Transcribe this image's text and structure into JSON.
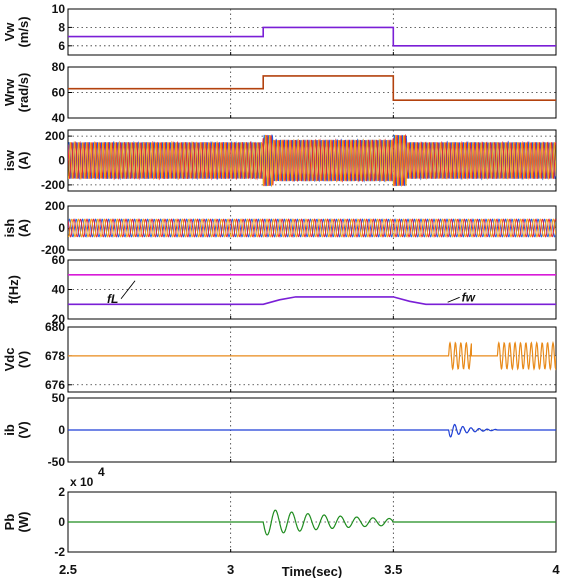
{
  "x_axis": {
    "label": "Time(sec)",
    "ticks": [
      "2.5",
      "3",
      "3.5",
      "4"
    ],
    "tick_values": [
      2.5,
      3,
      3.5,
      4
    ],
    "xlim": [
      2.5,
      4
    ]
  },
  "chart_data": [
    {
      "type": "line",
      "ylabel_lines": [
        "Vw",
        "(m/s)"
      ],
      "ylim": [
        5,
        10
      ],
      "yticks": [
        {
          "v": 10,
          "t": "10"
        },
        {
          "v": 8,
          "t": "8"
        },
        {
          "v": 6,
          "t": "6"
        }
      ],
      "grid": true,
      "series": [
        {
          "color": "#7a1fd6",
          "kind": "step",
          "x": [
            2.5,
            3.1,
            3.1,
            3.5,
            3.5,
            4.0
          ],
          "y": [
            7,
            7,
            8,
            8,
            6,
            6
          ]
        }
      ]
    },
    {
      "type": "line",
      "ylabel_lines": [
        "Wrw",
        "(rad/s)"
      ],
      "ylim": [
        40,
        80
      ],
      "yticks": [
        {
          "v": 80,
          "t": "80"
        },
        {
          "v": 60,
          "t": "60"
        },
        {
          "v": 40,
          "t": "40"
        }
      ],
      "grid": true,
      "series": [
        {
          "color": "#b3420e",
          "kind": "step",
          "x": [
            2.5,
            3.1,
            3.1,
            3.5,
            3.5,
            4.0
          ],
          "y": [
            63,
            63,
            73,
            73,
            54,
            54
          ]
        }
      ]
    },
    {
      "type": "line",
      "ylabel_lines": [
        "isw",
        "(A)"
      ],
      "ylim": [
        -250,
        250
      ],
      "yticks": [
        {
          "v": 200,
          "t": "200"
        },
        {
          "v": 0,
          "t": "0"
        },
        {
          "v": -200,
          "t": "-200"
        }
      ],
      "grid": true,
      "series": [
        {
          "color": "#1f5fe0",
          "kind": "osc3",
          "freq": 80,
          "segments": [
            [
              2.5,
              3.1,
              150
            ],
            [
              3.1,
              3.5,
              170
            ],
            [
              3.5,
              4.0,
              150
            ]
          ],
          "transients": [
            [
              3.1,
              3.13,
              210
            ],
            [
              3.5,
              3.54,
              210
            ]
          ]
        }
      ]
    },
    {
      "type": "line",
      "ylabel_lines": [
        "ish",
        "(A)"
      ],
      "ylim": [
        -200,
        200
      ],
      "yticks": [
        {
          "v": 200,
          "t": "200"
        },
        {
          "v": 0,
          "t": "0"
        },
        {
          "v": -200,
          "t": "-200"
        }
      ],
      "grid": true,
      "series": [
        {
          "color": "#1f5fe0",
          "kind": "osc3",
          "freq": 50,
          "segments": [
            [
              2.5,
              4.0,
              80
            ]
          ],
          "transients": []
        }
      ]
    },
    {
      "type": "line",
      "ylabel_lines": [
        "f(Hz)"
      ],
      "ylim": [
        20,
        60
      ],
      "yticks": [
        {
          "v": 60,
          "t": "60"
        },
        {
          "v": 40,
          "t": "40"
        },
        {
          "v": 20,
          "t": "20"
        }
      ],
      "grid": true,
      "series": [
        {
          "color": "#d81bd8",
          "kind": "step",
          "x": [
            2.5,
            4.0
          ],
          "y": [
            50,
            50
          ]
        },
        {
          "color": "#7a1fd6",
          "kind": "step",
          "x": [
            2.5,
            3.1,
            3.15,
            3.2,
            3.5,
            3.55,
            3.6,
            4.0
          ],
          "y": [
            30,
            30,
            33,
            35,
            35,
            32,
            30,
            30
          ]
        }
      ],
      "annotations": [
        {
          "text": "fL",
          "x": 2.62,
          "y": 31
        },
        {
          "text": "fw",
          "x": 3.71,
          "y": 32
        }
      ]
    },
    {
      "type": "line",
      "ylabel_lines": [
        "Vdc",
        "(V)"
      ],
      "ylim": [
        675.5,
        680
      ],
      "yticks": [
        {
          "v": 680,
          "t": "680"
        },
        {
          "v": 678,
          "t": "678"
        },
        {
          "v": 676,
          "t": "676"
        }
      ],
      "grid": true,
      "series": [
        {
          "color": "#e88a1a",
          "kind": "osc1",
          "base": 678,
          "freq": 60,
          "segments": [
            [
              3.67,
              3.74,
              0.9
            ],
            [
              3.82,
              4.0,
              0.9
            ]
          ]
        }
      ]
    },
    {
      "type": "line",
      "ylabel_lines": [
        "ib",
        "(V)"
      ],
      "ylim": [
        -50,
        50
      ],
      "yticks": [
        {
          "v": 50,
          "t": "50"
        },
        {
          "v": 0,
          "t": "0"
        },
        {
          "v": -50,
          "t": "-50"
        }
      ],
      "grid": true,
      "series": [
        {
          "color": "#1f3fd6",
          "kind": "damped",
          "base": 0,
          "start": 3.67,
          "end": 3.82,
          "amp": 12,
          "freq": 40,
          "decay": 18
        }
      ]
    },
    {
      "type": "line",
      "ylabel_lines": [
        "Pb",
        "(W)"
      ],
      "ylim": [
        -2,
        2
      ],
      "yticks": [
        {
          "v": 2,
          "t": "2"
        },
        {
          "v": 0,
          "t": "0"
        },
        {
          "v": -2,
          "t": "-2"
        }
      ],
      "grid": true,
      "multiplier": "x 10",
      "multiplier_exp": "4",
      "series": [
        {
          "color": "#1e8c1e",
          "kind": "damped",
          "base": 0,
          "start": 3.1,
          "end": 3.5,
          "amp": 0.9,
          "freq": 20,
          "decay": 3.5
        }
      ]
    }
  ]
}
